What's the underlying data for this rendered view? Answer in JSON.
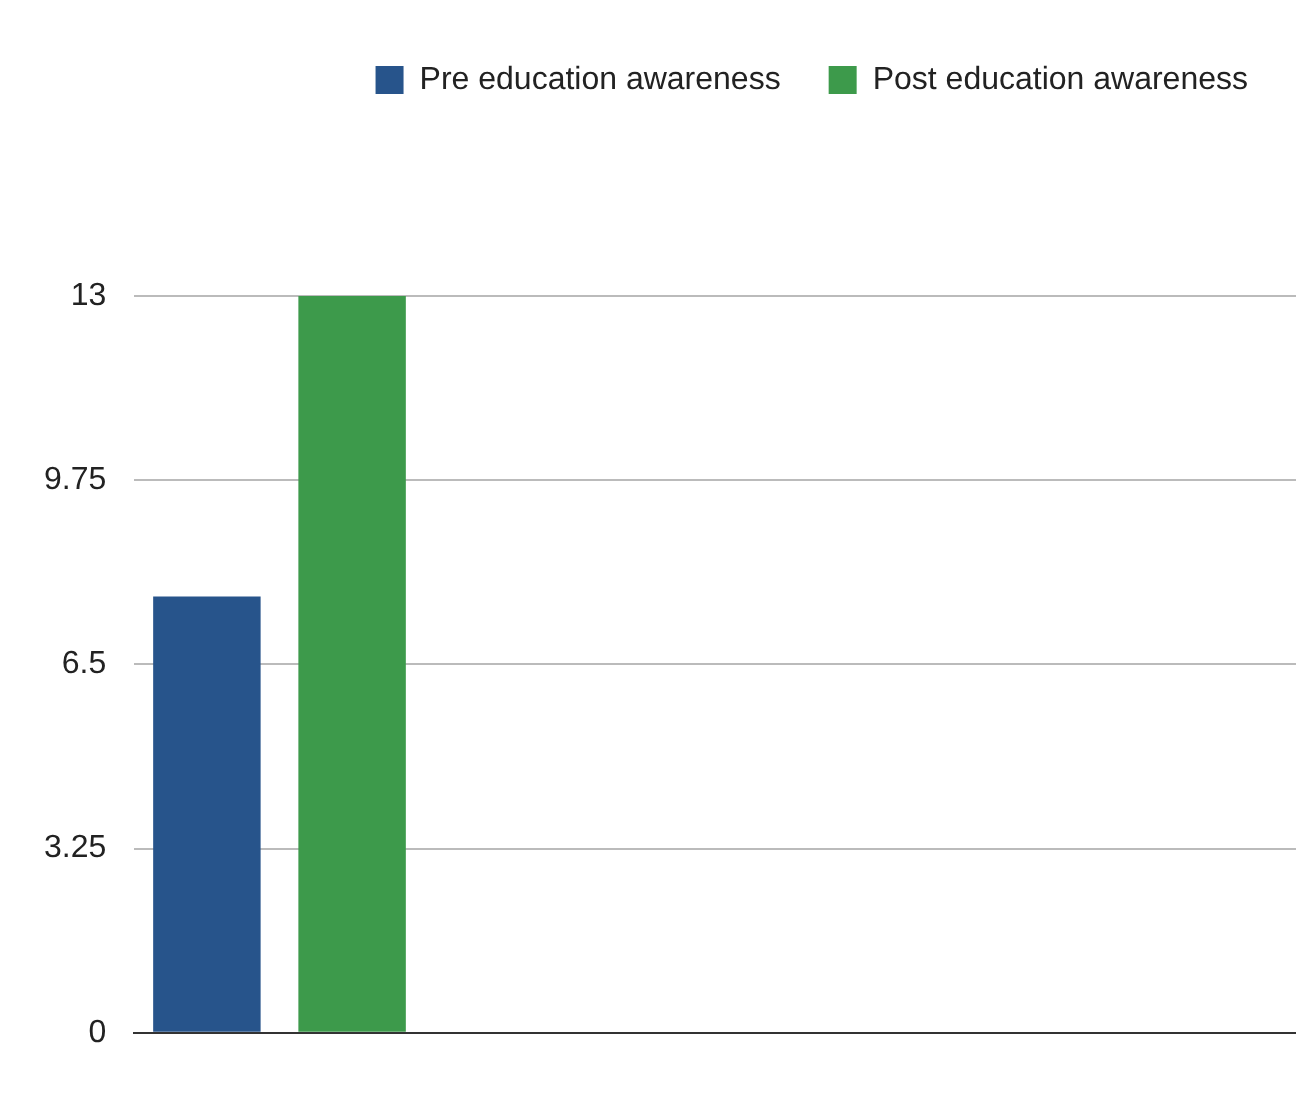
{
  "chart_data": {
    "type": "bar",
    "categories": [
      null,
      null,
      null,
      null
    ],
    "series": [
      {
        "name": "Pre education awareness",
        "color": "#27548b",
        "values": [
          7.7,
          null,
          null,
          null
        ]
      },
      {
        "name": "Post education awareness",
        "color": "#3d9a4b",
        "values": [
          13,
          null,
          null,
          null
        ]
      }
    ],
    "ylim": [
      0,
      13
    ],
    "yticks": [
      0,
      3.25,
      6.5,
      9.75,
      13
    ],
    "grid": "y",
    "legend": "top right"
  }
}
